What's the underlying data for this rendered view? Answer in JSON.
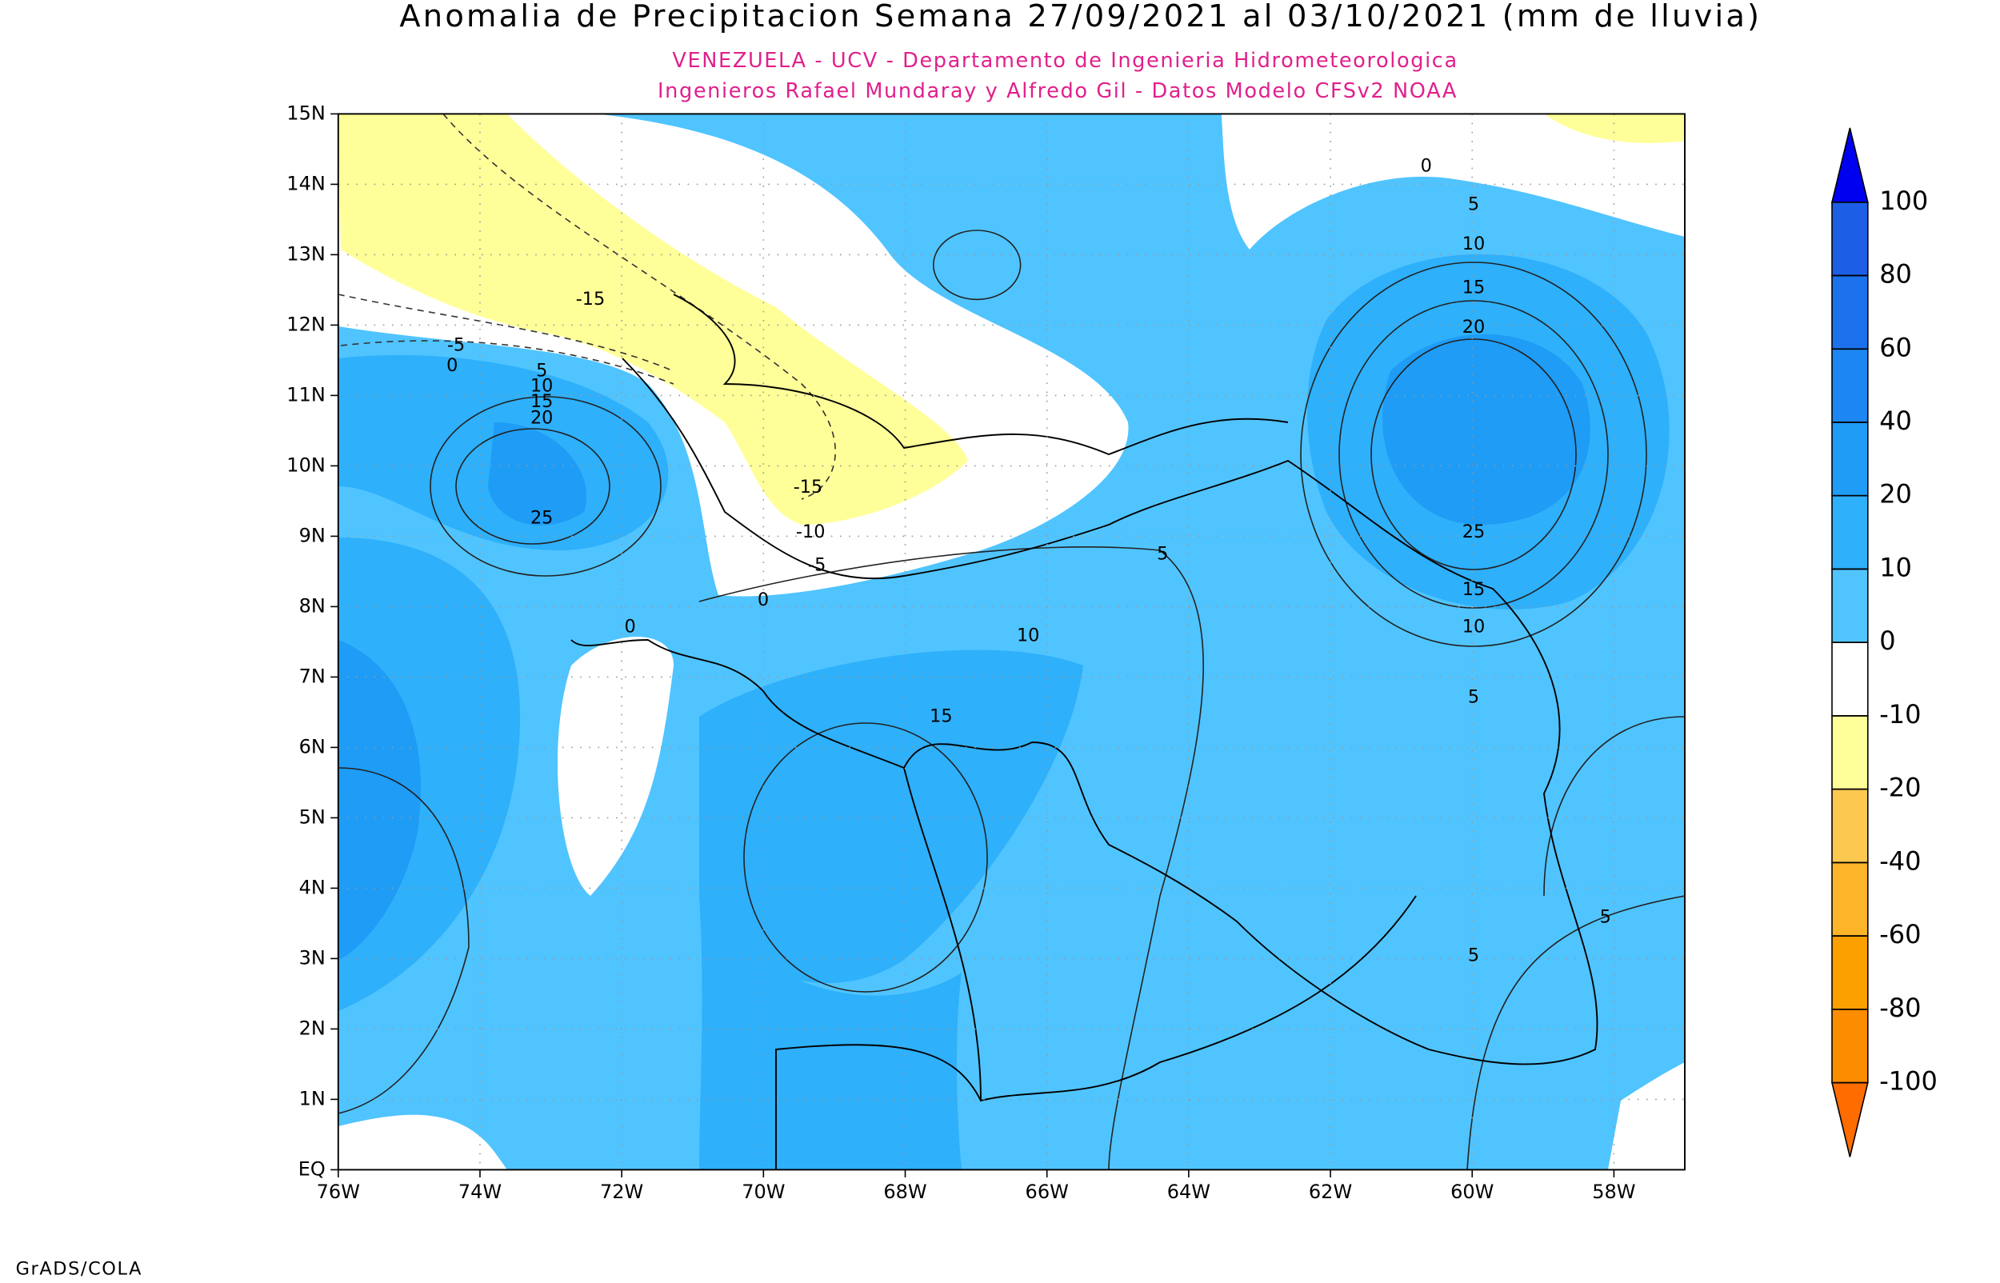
{
  "title": "Anomalia de Precipitacion Semana 27/09/2021 al 03/10/2021 (mm de lluvia)",
  "subtitle": [
    "VENEZUELA - UCV - Departamento de Ingenieria Hidrometeorologica",
    "Ingenieros Rafael Mundaray y Alfredo Gil - Datos Modelo CFSv2 NOAA"
  ],
  "map": {
    "lon_range": [
      -76,
      -57
    ],
    "lat_range": [
      0,
      15
    ],
    "lon_ticks": [
      {
        "value": -76,
        "label": "76W"
      },
      {
        "value": -74,
        "label": "74W"
      },
      {
        "value": -72,
        "label": "72W"
      },
      {
        "value": -70,
        "label": "70W"
      },
      {
        "value": -68,
        "label": "68W"
      },
      {
        "value": -66,
        "label": "66W"
      },
      {
        "value": -64,
        "label": "64W"
      },
      {
        "value": -62,
        "label": "62W"
      },
      {
        "value": -60,
        "label": "60W"
      },
      {
        "value": -58,
        "label": "58W"
      }
    ],
    "lat_ticks": [
      {
        "value": 0,
        "label": "EQ"
      },
      {
        "value": 1,
        "label": "1N"
      },
      {
        "value": 2,
        "label": "2N"
      },
      {
        "value": 3,
        "label": "3N"
      },
      {
        "value": 4,
        "label": "4N"
      },
      {
        "value": 5,
        "label": "5N"
      },
      {
        "value": 6,
        "label": "6N"
      },
      {
        "value": 7,
        "label": "7N"
      },
      {
        "value": 8,
        "label": "8N"
      },
      {
        "value": 9,
        "label": "9N"
      },
      {
        "value": 10,
        "label": "10N"
      },
      {
        "value": 11,
        "label": "11N"
      },
      {
        "value": 12,
        "label": "12N"
      },
      {
        "value": 13,
        "label": "13N"
      },
      {
        "value": 14,
        "label": "14N"
      },
      {
        "value": 15,
        "label": "15N"
      }
    ],
    "contour_labels": [
      -15,
      -5,
      0,
      5,
      10,
      15,
      20,
      25,
      -15,
      -10,
      -5,
      0,
      0,
      5,
      10,
      15,
      0,
      5,
      10,
      15,
      20,
      25,
      15,
      10,
      5,
      5,
      5
    ]
  },
  "colorbar": {
    "levels": [
      100,
      80,
      60,
      40,
      20,
      10,
      0,
      -10,
      -20,
      -40,
      -60,
      -80,
      -100
    ],
    "colors": [
      "#1c5ee6",
      "#1c72ec",
      "#1c86f2",
      "#1e9cf6",
      "#2eb0fb",
      "#50c4ff",
      "#ffffff",
      "#ffff99",
      "#fcc850",
      "#fcb428",
      "#fca000",
      "#fc8c00"
    ],
    "over_color": "#0000f0",
    "under_color": "#ff6c00"
  },
  "footer": "GrADS/COLA"
}
